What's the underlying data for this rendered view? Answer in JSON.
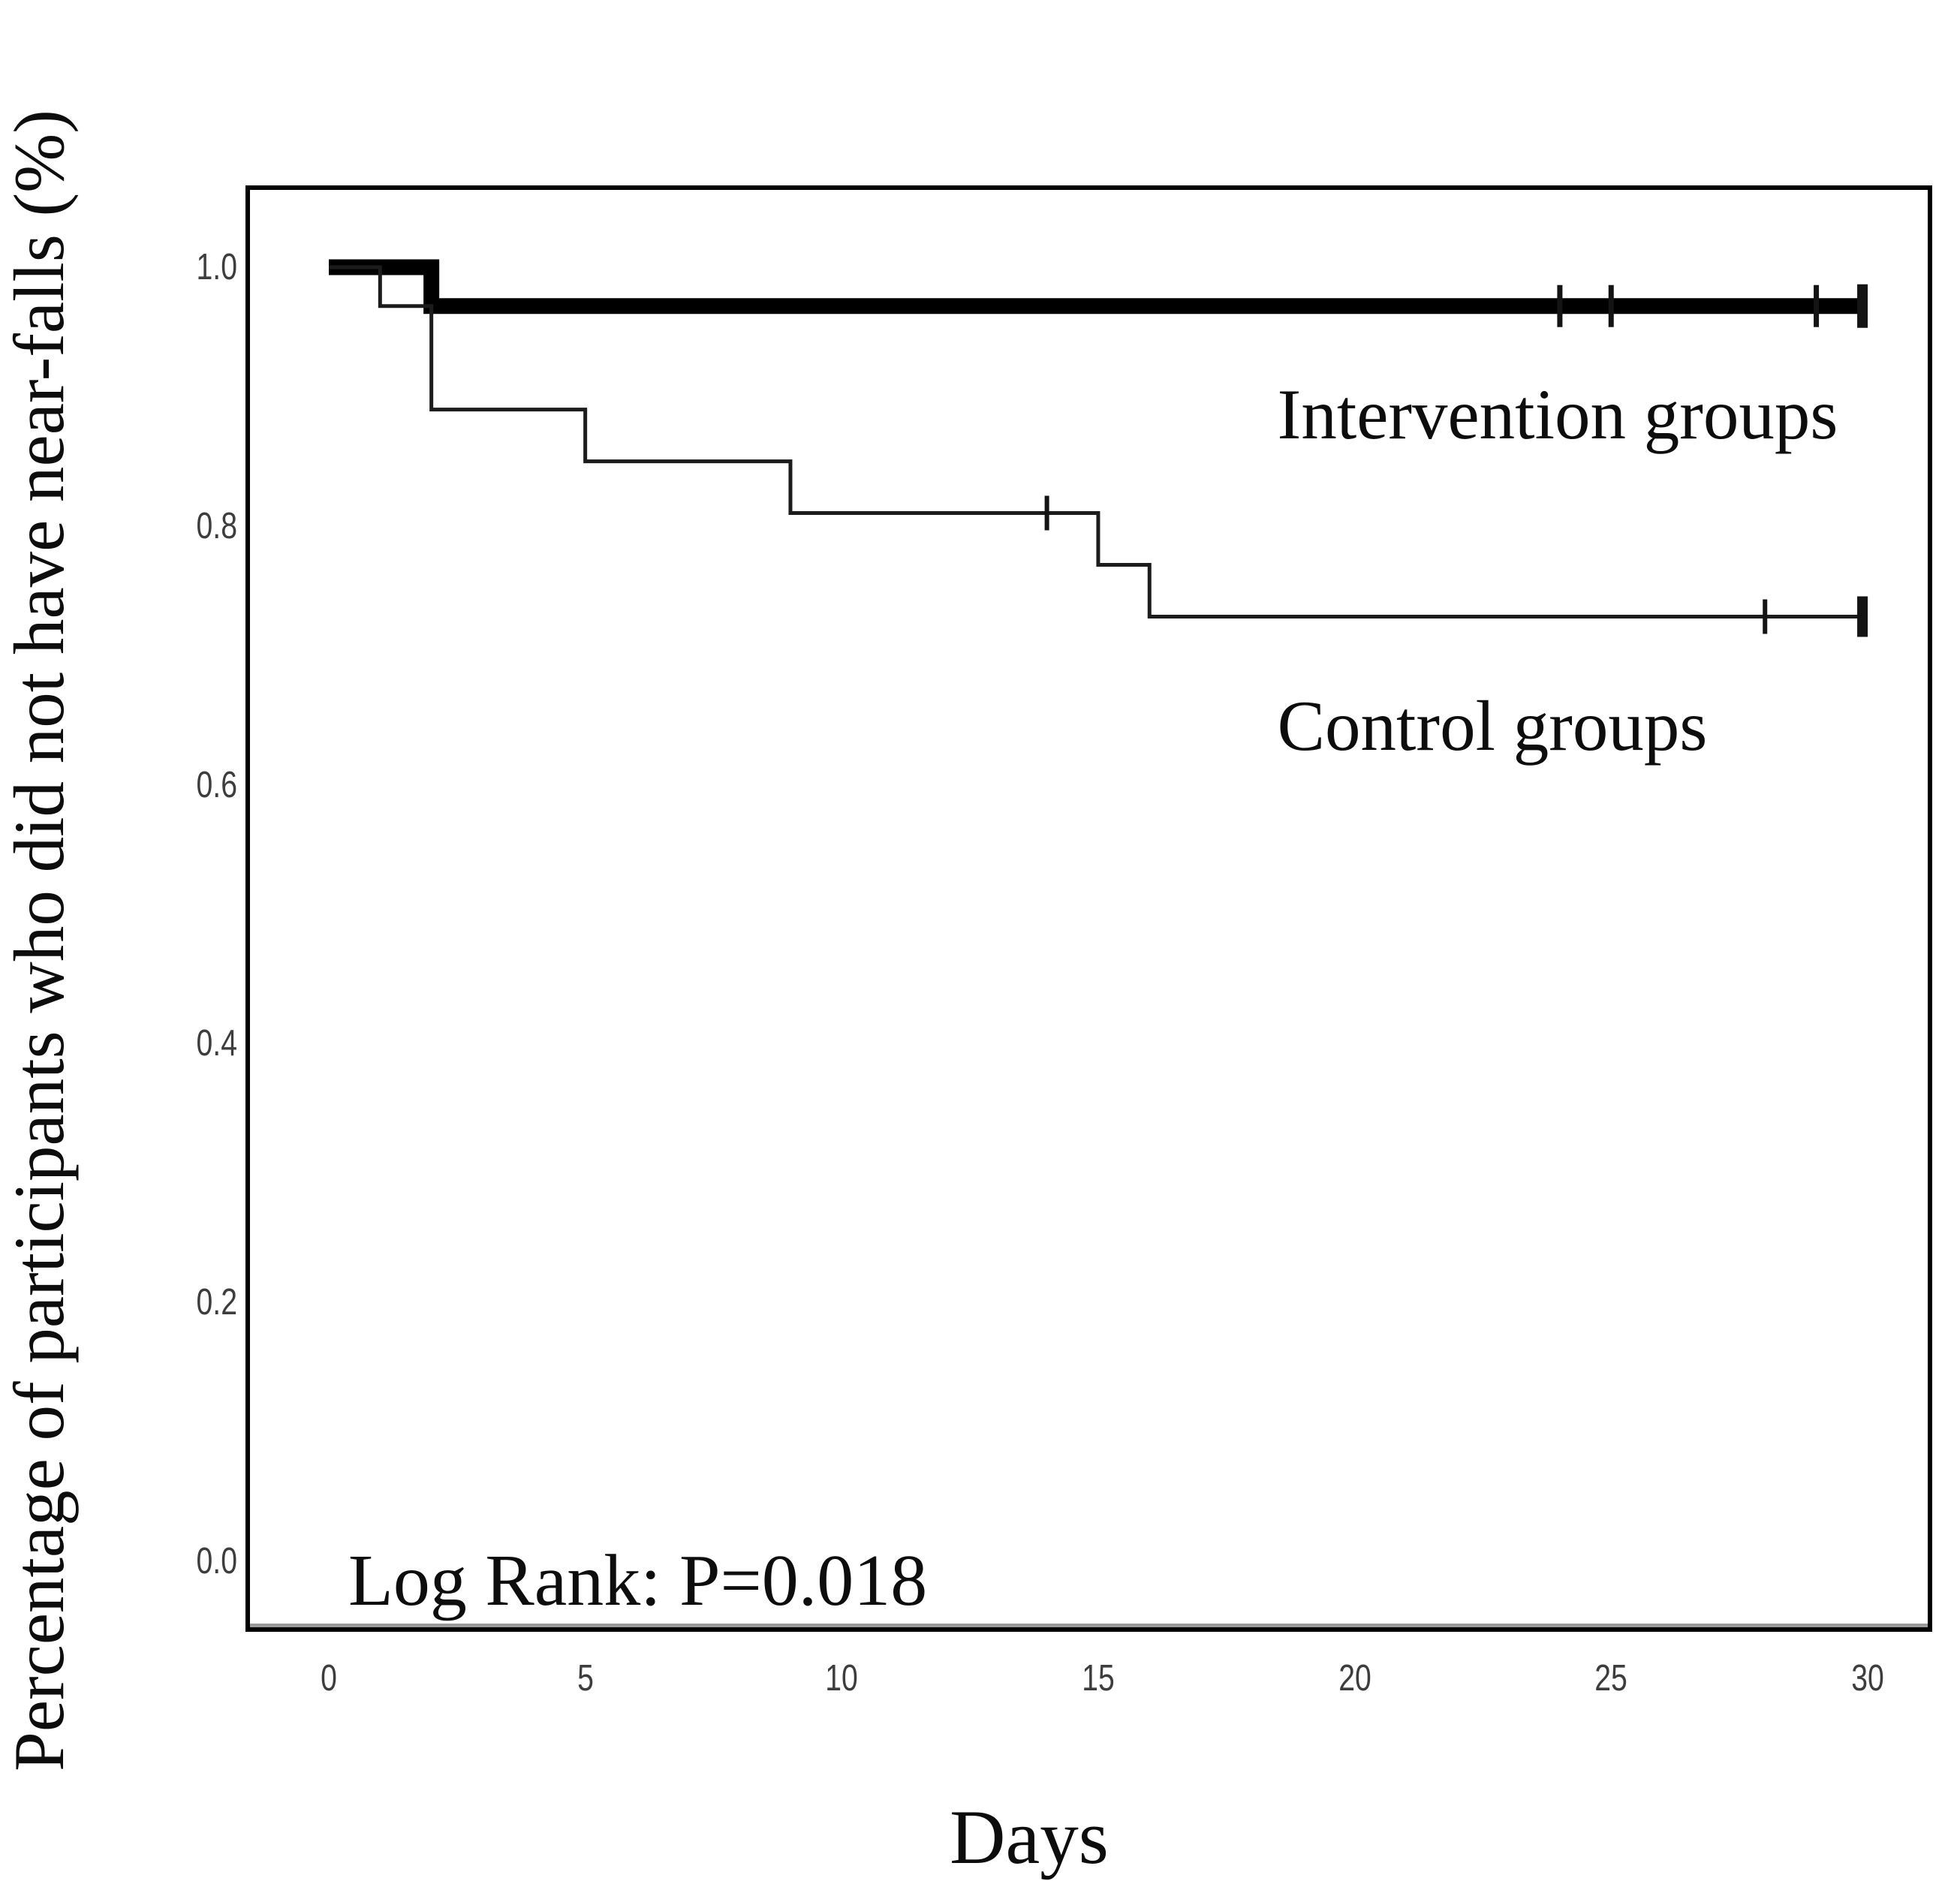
{
  "figure": {
    "y_axis_title": "Percentage of participants who did not have near-falls (%)",
    "x_axis_title": "Days",
    "annotations": {
      "intervention_label": "Intervention groups",
      "control_label": "Control groups",
      "log_rank": "Log Rank: P=0.018"
    }
  },
  "chart_data": {
    "type": "line",
    "subtype": "kaplan-meier-step",
    "xlabel": "Days",
    "ylabel": "Percentage of participants who did not have near-falls (%)",
    "xlim": [
      0,
      30
    ],
    "ylim": [
      0.0,
      1.0
    ],
    "grid": false,
    "legend_position": "inline-annotations",
    "x_tick_values": [
      0,
      5,
      10,
      15,
      20,
      25,
      30
    ],
    "x_tick_labels": [
      "0",
      "5",
      "10",
      "15",
      "20",
      "25",
      "30"
    ],
    "y_tick_values": [
      1.0,
      0.8,
      0.6,
      0.4,
      0.2,
      0.0
    ],
    "y_tick_labels": [
      "1.0",
      "0.8",
      "0.6",
      "0.4",
      "0.2",
      "0.0"
    ],
    "line_color": "#000000",
    "annotations": {
      "log_rank_p_value": 0.018
    },
    "series": [
      {
        "id": "intervention",
        "name": "Intervention groups",
        "style": "thick",
        "steps_day_survival": [
          [
            0,
            1.0
          ],
          [
            2,
            1.0
          ],
          [
            2,
            0.97
          ],
          [
            30,
            0.97
          ]
        ],
        "censor_marks_day_survival": [
          [
            24,
            0.97
          ],
          [
            25,
            0.97
          ],
          [
            29,
            0.97
          ]
        ],
        "end_censor_day_survival": [
          30,
          0.97
        ]
      },
      {
        "id": "control",
        "name": "Control groups",
        "style": "thin",
        "steps_day_survival": [
          [
            0,
            1.0
          ],
          [
            1,
            1.0
          ],
          [
            1,
            0.97
          ],
          [
            2,
            0.97
          ],
          [
            2,
            0.89
          ],
          [
            5,
            0.89
          ],
          [
            5,
            0.85
          ],
          [
            9,
            0.85
          ],
          [
            9,
            0.81
          ],
          [
            15,
            0.81
          ],
          [
            15,
            0.77
          ],
          [
            16,
            0.77
          ],
          [
            16,
            0.73
          ],
          [
            30,
            0.73
          ]
        ],
        "censor_marks_day_survival": [
          [
            14,
            0.81
          ],
          [
            28,
            0.73
          ]
        ],
        "end_censor_day_survival": [
          30,
          0.73
        ]
      }
    ]
  }
}
